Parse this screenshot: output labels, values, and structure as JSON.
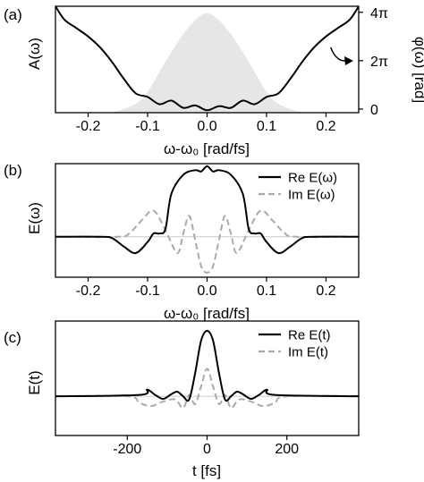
{
  "colors": {
    "spectrum_fill": "#e6e6e6",
    "real_line": "#000000",
    "imag_line": "#aaaaaa",
    "axis": "#000000"
  },
  "panels": [
    {
      "label": "(a)"
    },
    {
      "label": "(b)"
    },
    {
      "label": "(c)"
    }
  ],
  "chart_data": [
    {
      "type": "line",
      "panel": "(a)",
      "xlabel": "ω-ω₀ [rad/fs]",
      "ylabel": "A(ω)",
      "y2label": "φ(ω) [rad]",
      "xlim": [
        -0.255,
        0.255
      ],
      "ylim": [
        0,
        1.07
      ],
      "y2lim": [
        -0.15,
        4.25
      ],
      "xticks": [
        -0.2,
        -0.1,
        0.0,
        0.1,
        0.2
      ],
      "xtick_labels": [
        "-0.2",
        "-0.1",
        "0.0",
        "0.1",
        "0.2"
      ],
      "y2ticks": [
        0,
        2,
        4
      ],
      "y2tick_labels": [
        "0",
        "2π",
        "4π"
      ],
      "annotation": "arrow points from phase curve to right axis",
      "series": [
        {
          "role": "amplitude (shaded)",
          "x": [
            -0.25,
            -0.2,
            -0.16,
            -0.12,
            -0.1,
            -0.08,
            -0.06,
            -0.04,
            -0.02,
            0.0,
            0.02,
            0.04,
            0.06,
            0.08,
            0.1,
            0.12,
            0.16,
            0.2,
            0.25
          ],
          "y": [
            0.0,
            0.0,
            0.004,
            0.09,
            0.21,
            0.41,
            0.61,
            0.79,
            0.93,
            1.0,
            0.93,
            0.79,
            0.61,
            0.41,
            0.21,
            0.09,
            0.004,
            0.0,
            0.0
          ]
        },
        {
          "role": "phase (right axis, units of π)",
          "x": [
            -0.255,
            -0.24,
            -0.22,
            -0.2,
            -0.18,
            -0.16,
            -0.14,
            -0.12,
            -0.1,
            -0.08,
            -0.06,
            -0.04,
            -0.02,
            0.0,
            0.02,
            0.04,
            0.06,
            0.08,
            0.1,
            0.12,
            0.14,
            0.16,
            0.18,
            0.2,
            0.22,
            0.24,
            0.255
          ],
          "y": [
            4.25,
            3.7,
            3.35,
            3.0,
            2.55,
            1.95,
            1.25,
            0.65,
            0.5,
            0.2,
            0.35,
            0.05,
            0.15,
            -0.05,
            0.12,
            0.05,
            0.35,
            0.2,
            0.5,
            0.65,
            1.25,
            1.95,
            2.55,
            3.0,
            3.35,
            3.7,
            4.25
          ]
        }
      ]
    },
    {
      "type": "line",
      "panel": "(b)",
      "xlabel": "ω-ω₀ [rad/fs]",
      "ylabel": "E(ω)",
      "xlim": [
        -0.255,
        0.255
      ],
      "ylim": [
        -0.62,
        1.12
      ],
      "xticks": [
        -0.2,
        -0.1,
        0.0,
        0.1,
        0.2
      ],
      "xtick_labels": [
        "-0.2",
        "-0.1",
        "0.0",
        "0.1",
        "0.2"
      ],
      "legend_position": "top-right",
      "series": [
        {
          "name": "Re E(ω)",
          "x": [
            -0.255,
            -0.18,
            -0.16,
            -0.14,
            -0.12,
            -0.1,
            -0.09,
            -0.08,
            -0.07,
            -0.06,
            -0.04,
            -0.02,
            -0.01,
            0.0,
            0.01,
            0.02,
            0.04,
            0.06,
            0.07,
            0.08,
            0.09,
            0.1,
            0.12,
            0.14,
            0.16,
            0.18,
            0.255
          ],
          "y": [
            0.0,
            0.0,
            -0.02,
            -0.15,
            -0.25,
            -0.08,
            0.05,
            0.05,
            0.12,
            0.66,
            0.95,
            1.02,
            1.0,
            1.08,
            1.0,
            1.02,
            0.95,
            0.66,
            0.12,
            0.05,
            0.05,
            -0.08,
            -0.25,
            -0.15,
            -0.02,
            0.0,
            0.0
          ]
        },
        {
          "name": "Im E(ω)",
          "x": [
            -0.255,
            -0.15,
            -0.13,
            -0.11,
            -0.09,
            -0.07,
            -0.05,
            -0.04,
            -0.03,
            -0.02,
            -0.01,
            0.0,
            0.01,
            0.02,
            0.03,
            0.04,
            0.05,
            0.07,
            0.09,
            0.11,
            0.13,
            0.15,
            0.255
          ],
          "y": [
            0.0,
            0.0,
            0.06,
            0.25,
            0.4,
            0.1,
            -0.25,
            0.05,
            0.32,
            -0.05,
            -0.45,
            -0.55,
            -0.45,
            -0.05,
            0.32,
            0.05,
            -0.25,
            0.1,
            0.4,
            0.25,
            0.06,
            0.0,
            0.0
          ]
        }
      ]
    },
    {
      "type": "line",
      "panel": "(c)",
      "xlabel": "t [fs]",
      "ylabel": "E(t)",
      "xlim": [
        -380,
        380
      ],
      "ylim": [
        -0.6,
        1.15
      ],
      "xticks": [
        -200,
        0,
        200
      ],
      "xtick_labels": [
        "-200",
        "0",
        "200"
      ],
      "legend_position": "top-right",
      "series": [
        {
          "name": "Re E(t)",
          "x": [
            -380,
            -170,
            -150,
            -130,
            -110,
            -90,
            -75,
            -60,
            -45,
            -30,
            -15,
            0,
            15,
            30,
            45,
            60,
            75,
            90,
            110,
            130,
            150,
            170,
            380
          ],
          "y": [
            0.0,
            0.02,
            0.1,
            0.02,
            -0.04,
            0.03,
            0.07,
            0.0,
            -0.05,
            0.35,
            0.85,
            1.0,
            0.85,
            0.35,
            -0.05,
            0.0,
            0.07,
            0.03,
            -0.04,
            0.02,
            0.1,
            0.02,
            0.0
          ]
        },
        {
          "name": "Im E(t)",
          "x": [
            -380,
            -200,
            -170,
            -140,
            -110,
            -80,
            -60,
            -45,
            -30,
            -15,
            0,
            15,
            30,
            45,
            60,
            80,
            110,
            140,
            170,
            200,
            380
          ],
          "y": [
            0.0,
            0.0,
            -0.1,
            -0.15,
            -0.08,
            -0.05,
            -0.18,
            0.02,
            -0.12,
            0.15,
            0.42,
            0.15,
            -0.12,
            0.02,
            -0.18,
            -0.05,
            -0.08,
            -0.15,
            -0.1,
            0.0,
            0.0
          ]
        }
      ]
    }
  ]
}
